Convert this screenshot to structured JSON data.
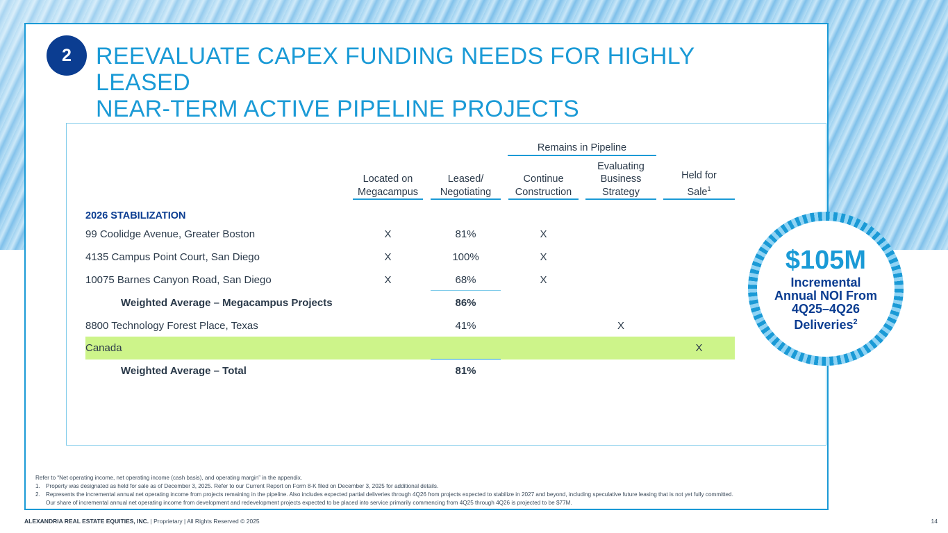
{
  "slide": {
    "number_badge": "2",
    "title_line1": "REEVALUATE CAPEX FUNDING NEEDS FOR HIGHLY LEASED",
    "title_line2": "NEAR-TERM ACTIVE PIPELINE PROJECTS",
    "page_number": "14"
  },
  "table": {
    "group_header": "Remains in Pipeline",
    "columns": [
      {
        "line1": "Located on",
        "line2": "Megacampus",
        "line3": ""
      },
      {
        "line1": "Leased/",
        "line2": "Negotiating",
        "line3": ""
      },
      {
        "line1": "Continue",
        "line2": "Construction",
        "line3": ""
      },
      {
        "line1": "Evaluating",
        "line2": "Business",
        "line3": "Strategy"
      },
      {
        "line1": "Held for",
        "line2": "Sale",
        "line3": "1"
      }
    ],
    "section_label": "2026 STABILIZATION",
    "rows": [
      {
        "name": "99 Coolidge Avenue, Greater Boston",
        "megacampus": "X",
        "leased": "81%",
        "construction": "X",
        "evaluating": "",
        "held": ""
      },
      {
        "name": "4135 Campus Point Court, San Diego",
        "megacampus": "X",
        "leased": "100%",
        "construction": "X",
        "evaluating": "",
        "held": ""
      },
      {
        "name": "10075 Barnes Canyon Road, San Diego",
        "megacampus": "X",
        "leased": "68%",
        "construction": "X",
        "evaluating": "",
        "held": ""
      },
      {
        "name": "Weighted Average – Megacampus Projects",
        "megacampus": "",
        "leased": "86%",
        "construction": "",
        "evaluating": "",
        "held": ""
      },
      {
        "name": "8800 Technology Forest Place, Texas",
        "megacampus": "",
        "leased": "41%",
        "construction": "",
        "evaluating": "X",
        "held": ""
      },
      {
        "name": "Canada",
        "megacampus": "",
        "leased": "",
        "construction": "",
        "evaluating": "",
        "held": "X"
      },
      {
        "name": "Weighted Average – Total",
        "megacampus": "",
        "leased": "81%",
        "construction": "",
        "evaluating": "",
        "held": ""
      }
    ]
  },
  "callout": {
    "amount": "$105M",
    "line1": "Incremental",
    "line2": "Annual NOI From",
    "line3": "4Q25–4Q26",
    "line4": "Deliveries",
    "sup": "2"
  },
  "notes": {
    "intro": "Refer to “Net operating income, net operating income (cash basis), and operating margin” in the appendix.",
    "n1_key": "1.",
    "n1": "Property was designated as held for sale as of December 3, 2025. Refer to our Current Report on Form 8-K filed on December 3, 2025 for additional details.",
    "n2_key": "2.",
    "n2a": "Represents the incremental annual net operating income from projects remaining in the pipeline. Also includes expected partial deliveries through 4Q26 from projects expected to stabilize in 2027 and beyond, including speculative future leasing that is not yet fully committed.",
    "n2b": "Our share of incremental annual net operating income from development and redevelopment projects expected to be placed into service primarily commencing from 4Q25 through 4Q26 is projected to be $77M."
  },
  "footer": {
    "company": "ALEXANDRIA REAL ESTATE EQUITIES, INC.",
    "rights": " | Proprietary | All Rights Reserved © 2025"
  }
}
